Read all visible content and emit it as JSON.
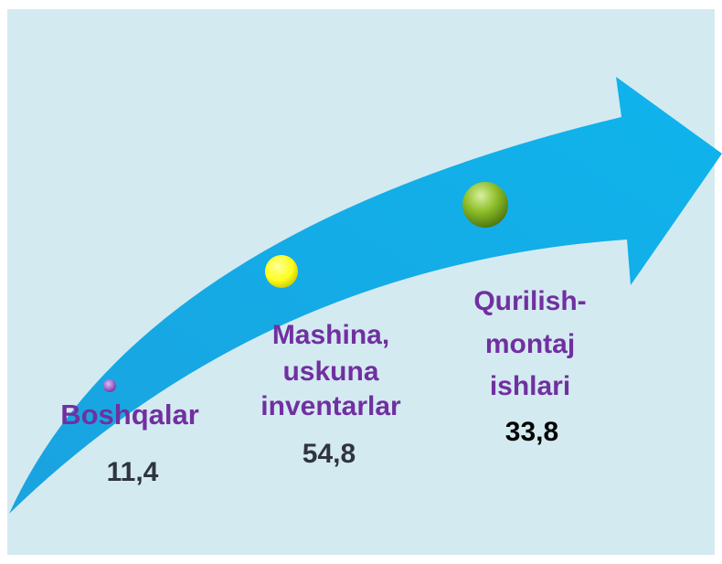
{
  "items": [
    {
      "label": [
        "Boshqalar"
      ],
      "value": "11,4"
    },
    {
      "label": [
        "Mashina,",
        "uskuna",
        "inventarlar"
      ],
      "value": "54,8"
    },
    {
      "label": [
        "Qurilish-",
        "montaj",
        "ishlari"
      ],
      "value": "33,8"
    }
  ]
}
